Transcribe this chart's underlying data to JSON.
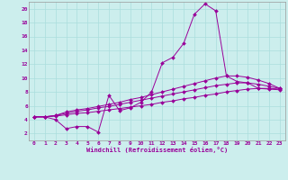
{
  "xlabel": "Windchill (Refroidissement éolien,°C)",
  "background_color": "#cceeed",
  "line_color": "#990099",
  "grid_color": "#aadddd",
  "xlim": [
    -0.5,
    23.5
  ],
  "ylim": [
    1.0,
    21.0
  ],
  "x_ticks": [
    0,
    1,
    2,
    3,
    4,
    5,
    6,
    7,
    8,
    9,
    10,
    11,
    12,
    13,
    14,
    15,
    16,
    17,
    18,
    19,
    20,
    21,
    22,
    23
  ],
  "y_ticks": [
    2,
    4,
    6,
    8,
    10,
    12,
    14,
    16,
    18,
    20
  ],
  "series_x": [
    0,
    1,
    2,
    3,
    4,
    5,
    6,
    7,
    8,
    9,
    10,
    11,
    12,
    13,
    14,
    15,
    16,
    17,
    18,
    19,
    20,
    21,
    22,
    23
  ],
  "series": [
    [
      4.4,
      4.4,
      4.0,
      2.7,
      3.0,
      3.0,
      2.2,
      7.5,
      5.3,
      5.7,
      6.5,
      8.0,
      12.2,
      13.0,
      15.0,
      19.2,
      20.7,
      19.7,
      10.3,
      9.5,
      9.3,
      8.5,
      8.4,
      8.3
    ],
    [
      4.4,
      4.4,
      4.6,
      5.1,
      5.4,
      5.6,
      5.9,
      6.2,
      6.5,
      6.9,
      7.2,
      7.6,
      8.0,
      8.4,
      8.8,
      9.2,
      9.6,
      10.0,
      10.3,
      10.3,
      10.1,
      9.7,
      9.2,
      8.5
    ],
    [
      4.4,
      4.4,
      4.6,
      4.9,
      5.2,
      5.4,
      5.7,
      5.9,
      6.2,
      6.5,
      6.8,
      7.1,
      7.4,
      7.7,
      8.0,
      8.3,
      8.6,
      8.9,
      9.1,
      9.3,
      9.3,
      9.1,
      8.8,
      8.5
    ],
    [
      4.4,
      4.4,
      4.5,
      4.7,
      4.9,
      5.0,
      5.2,
      5.4,
      5.6,
      5.8,
      6.0,
      6.2,
      6.5,
      6.7,
      7.0,
      7.2,
      7.5,
      7.7,
      8.0,
      8.2,
      8.4,
      8.5,
      8.5,
      8.4
    ]
  ]
}
